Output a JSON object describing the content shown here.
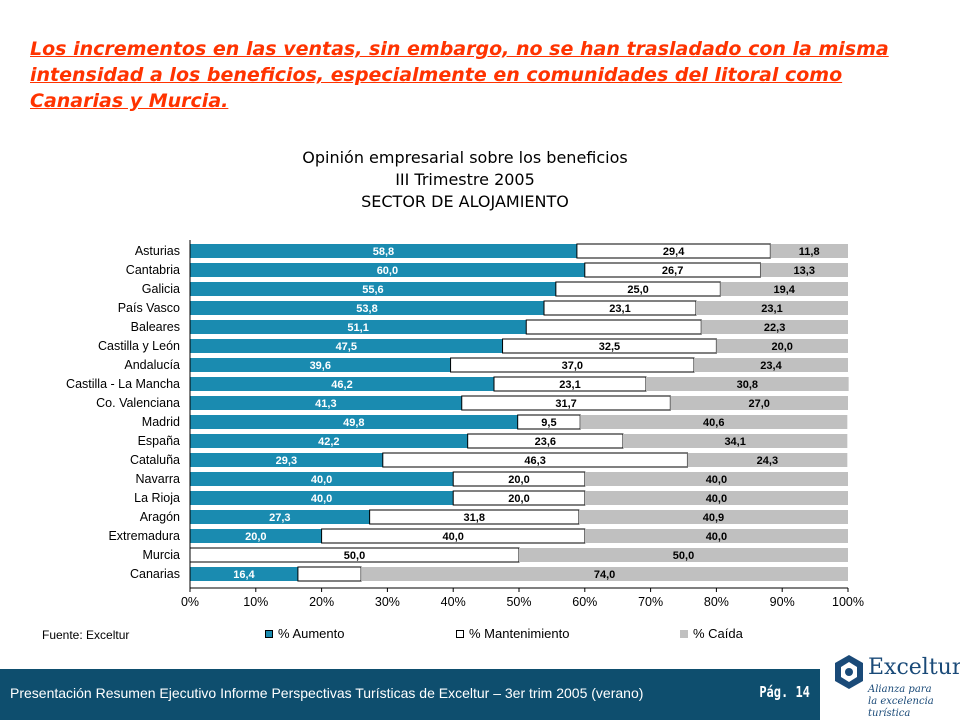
{
  "headline": "Los incrementos en las ventas, sin embargo, no se han trasladado con la misma intensidad a los beneficios, especialmente en comunidades del litoral como Canarias y Murcia.",
  "footer": {
    "text": "Presentación Resumen Ejecutivo Informe Perspectivas Turísticas de Exceltur – 3er trim 2005 (verano)",
    "page": "Pág. 14"
  },
  "logo": {
    "name": "Exceltur",
    "tagline_1": "Alianza para",
    "tagline_2": "la excelencia turística"
  },
  "colors": {
    "aumento": "#1a8bb0",
    "mantenimiento": "#ffffff",
    "caida": "#c0c0c0",
    "headline": "#ff3300",
    "footer": "#0e4e6e"
  },
  "chart_data": {
    "type": "bar",
    "orientation": "horizontal-stacked-100",
    "title_lines": [
      "Opinión empresarial sobre los beneficios",
      "III Trimestre 2005",
      "SECTOR DE ALOJAMIENTO"
    ],
    "source": "Fuente: Exceltur",
    "categories": [
      "Asturias",
      "Cantabria",
      "Galicia",
      "País Vasco",
      "Baleares",
      "Castilla y León",
      "Andalucía",
      "Castilla - La Mancha",
      "Co. Valenciana",
      "Madrid",
      "España",
      "Cataluña",
      "Navarra",
      "La Rioja",
      "Aragón",
      "Extremadura",
      "Murcia",
      "Canarias"
    ],
    "series": [
      {
        "name": "% Aumento",
        "values": [
          58.8,
          60.0,
          55.6,
          53.8,
          51.1,
          47.5,
          39.6,
          46.2,
          41.3,
          49.8,
          42.2,
          29.3,
          40.0,
          40.0,
          27.3,
          20.0,
          0,
          16.4
        ]
      },
      {
        "name": "% Mantenimiento",
        "values": [
          29.4,
          26.7,
          25.0,
          23.1,
          26.6,
          32.5,
          37.0,
          23.1,
          31.7,
          9.5,
          23.6,
          46.3,
          20.0,
          20.0,
          31.8,
          40.0,
          50.0,
          9.6
        ]
      },
      {
        "name": "% Caída",
        "values": [
          11.8,
          13.3,
          19.4,
          23.1,
          22.3,
          20.0,
          23.4,
          30.8,
          27.0,
          40.6,
          34.1,
          24.3,
          40.0,
          40.0,
          40.9,
          40.0,
          50.0,
          74.0
        ]
      }
    ],
    "labels": [
      [
        "58,8",
        "29,4",
        "11,8"
      ],
      [
        "60,0",
        "26,7",
        "13,3"
      ],
      [
        "55,6",
        "25,0",
        "19,4"
      ],
      [
        "53,8",
        "23,1",
        "23,1"
      ],
      [
        "51,1",
        "",
        "22,3"
      ],
      [
        "47,5",
        "32,5",
        "20,0"
      ],
      [
        "39,6",
        "37,0",
        "23,4"
      ],
      [
        "46,2",
        "23,1",
        "30,8"
      ],
      [
        "41,3",
        "31,7",
        "27,0"
      ],
      [
        "49,8",
        "9,5",
        "40,6"
      ],
      [
        "42,2",
        "23,6",
        "34,1"
      ],
      [
        "29,3",
        "46,3",
        "24,3"
      ],
      [
        "40,0",
        "20,0",
        "40,0"
      ],
      [
        "40,0",
        "20,0",
        "40,0"
      ],
      [
        "27,3",
        "31,8",
        "40,9"
      ],
      [
        "20,0",
        "40,0",
        "40,0"
      ],
      [
        "",
        "50,0",
        "50,0"
      ],
      [
        "16,4",
        "",
        "74,0"
      ]
    ],
    "x_ticks": [
      "0%",
      "10%",
      "20%",
      "30%",
      "40%",
      "50%",
      "60%",
      "70%",
      "80%",
      "90%",
      "100%"
    ],
    "xlim": [
      0,
      100
    ],
    "legend_position": "bottom",
    "grid": false
  }
}
